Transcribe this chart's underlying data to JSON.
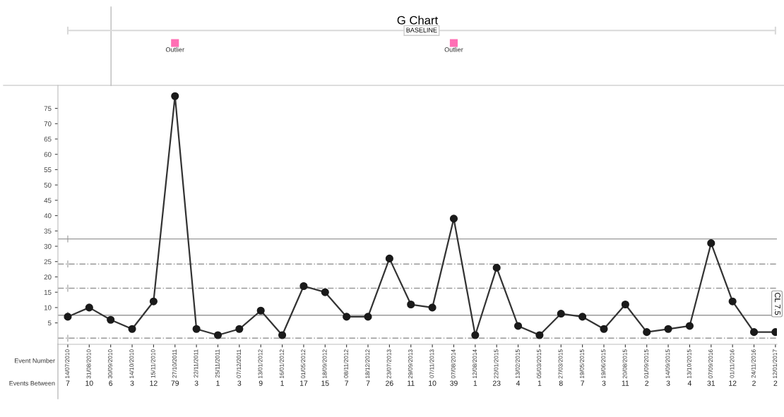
{
  "chart_data": {
    "type": "line",
    "title": "G Chart",
    "xlabel": "Event Number",
    "categories": [
      "14/07/2010",
      "31/08/2010",
      "30/09/2010",
      "14/10/2010",
      "15/11/2010",
      "27/10/2011",
      "22/11/2011",
      "25/11/2011",
      "07/12/2011",
      "13/01/2012",
      "16/01/2012",
      "01/05/2012",
      "18/09/2012",
      "08/11/2012",
      "18/12/2012",
      "23/07/2013",
      "29/09/2013",
      "07/11/2013",
      "07/08/2014",
      "12/08/2014",
      "22/01/2015",
      "13/02/2015",
      "05/03/2015",
      "27/03/2015",
      "19/05/2015",
      "19/06/2015",
      "20/08/2015",
      "01/09/2015",
      "14/09/2015",
      "13/10/2015",
      "07/09/2016",
      "01/11/2016",
      "24/11/2016",
      "12/01/2017"
    ],
    "series": [
      {
        "color": "#333333",
        "values": [
          7,
          10,
          6,
          3,
          12,
          79,
          3,
          1,
          3,
          9,
          1,
          17,
          15,
          7,
          7,
          26,
          11,
          10,
          39,
          1,
          23,
          4,
          1,
          8,
          7,
          3,
          11,
          2,
          3,
          4,
          31,
          12,
          2,
          2
        ]
      }
    ],
    "data_labels": true,
    "marker": "circle",
    "line_style": "solid",
    "grid": false,
    "ylim": [
      -2,
      82.5
    ],
    "yticks": [
      5,
      10,
      15,
      20,
      25,
      30,
      35,
      40,
      45,
      50,
      55,
      60,
      65,
      70,
      75
    ],
    "ref_lines": [
      {
        "axis": "y",
        "value": 7.5,
        "label": "CL 7.5",
        "color": "#999999",
        "line_style": "solid"
      },
      {
        "axis": "y",
        "value": 32.4,
        "label": null,
        "color": "#999999",
        "line_style": "solid"
      },
      {
        "axis": "y",
        "value": 24.2,
        "label": null,
        "color": "#999999",
        "line_style": "dashed"
      },
      {
        "axis": "y",
        "value": 16.3,
        "label": null,
        "color": "#999999",
        "line_style": "dashed"
      },
      {
        "axis": "y",
        "value": 0,
        "label": null,
        "color": "#999999",
        "line_style": "dashed"
      }
    ],
    "annotations": [
      "Events Between",
      "BASELINE",
      "Outlier",
      "Outlier"
    ]
  }
}
